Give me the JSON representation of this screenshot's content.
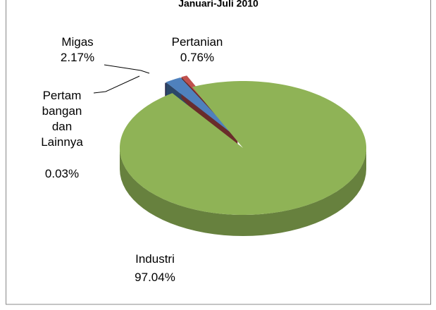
{
  "chart_data": {
    "type": "pie3d",
    "title": "Januari-Juli 2010",
    "categories": [
      "Pertambangan dan Lainnya",
      "Migas",
      "Pertanian",
      "Industri"
    ],
    "values": [
      0.03,
      2.17,
      0.76,
      97.04
    ],
    "value_labels": [
      "0.03%",
      "2.17%",
      "0.76%",
      "97.04%"
    ],
    "colors": [
      "#3f3878",
      "#4f81bd",
      "#c0504d",
      "#8fb356"
    ]
  }
}
